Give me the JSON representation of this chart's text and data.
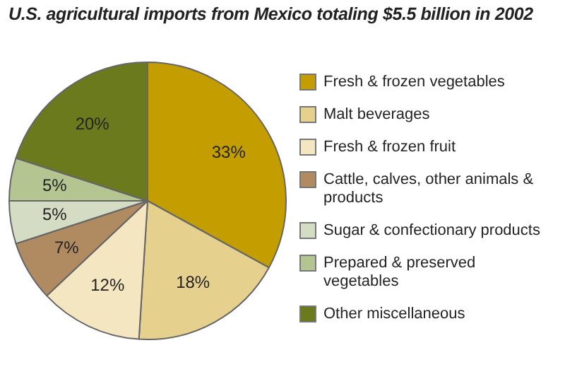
{
  "chart_data": {
    "type": "pie",
    "title": "U.S. agricultural imports from Mexico totaling $5.5 billion in 2002",
    "categories": [
      "Fresh & frozen vegetables",
      "Malt beverages",
      "Fresh & frozen fruit",
      "Cattle, calves, other animals & products",
      "Sugar & confectionary products",
      "Prepared & preserved vegetables",
      "Other miscellaneous"
    ],
    "values": [
      33,
      18,
      12,
      7,
      5,
      5,
      20
    ],
    "colors": [
      "#c49e00",
      "#e6d08e",
      "#f3e6c0",
      "#b08b62",
      "#d4dcc4",
      "#b4c592",
      "#6b7a1c"
    ],
    "value_labels": [
      "33%",
      "18%",
      "12%",
      "7%",
      "5%",
      "5%",
      "20%"
    ],
    "legend": "right"
  }
}
